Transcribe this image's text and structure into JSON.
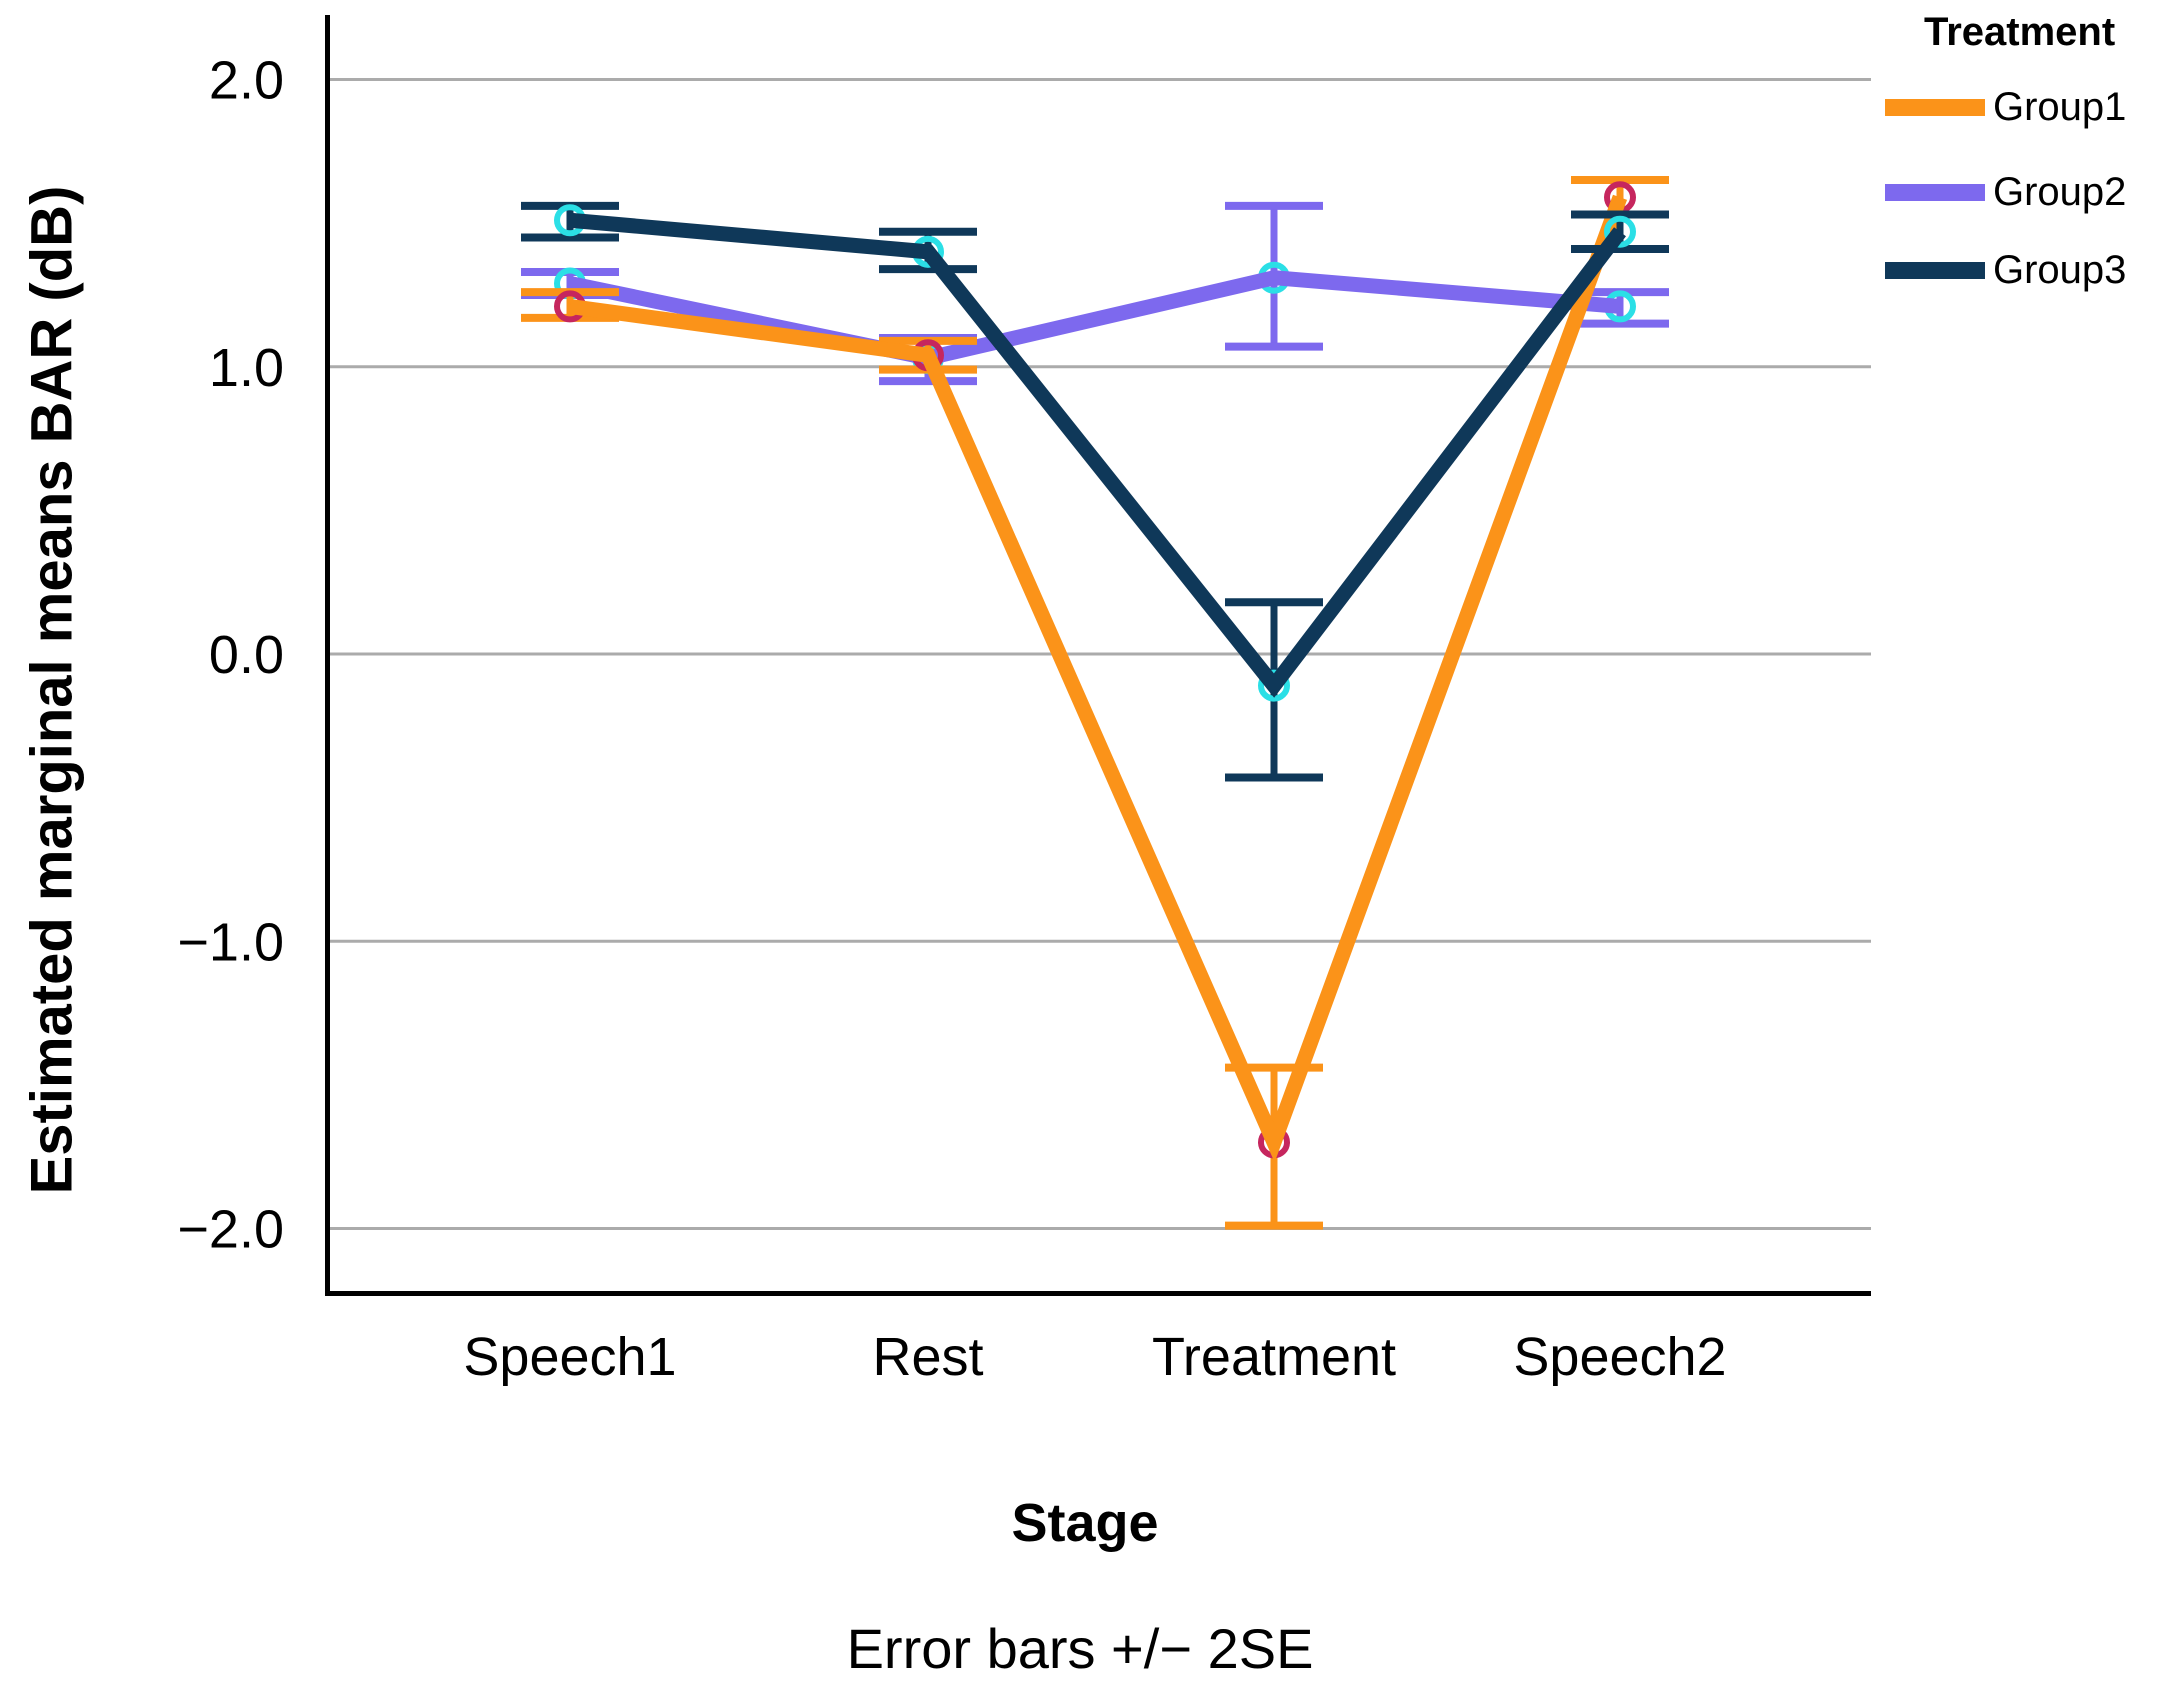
{
  "chart_data": {
    "type": "line",
    "title": "",
    "categories": [
      "Speech1",
      "Rest",
      "Treatment",
      "Speech2"
    ],
    "series": [
      {
        "name": "Group1",
        "color": "#FB9319",
        "marker_color": "#C6265E",
        "values": [
          1.21,
          1.04,
          -1.7,
          1.59
        ],
        "err_low": [
          1.17,
          0.99,
          -1.99,
          1.53
        ],
        "err_high": [
          1.26,
          1.09,
          -1.44,
          1.65
        ]
      },
      {
        "name": "Group2",
        "color": "#7D69EE",
        "marker_color": "#2BDFE6",
        "values": [
          1.29,
          1.03,
          1.31,
          1.21
        ],
        "err_low": [
          1.25,
          0.95,
          1.07,
          1.15
        ],
        "err_high": [
          1.33,
          1.1,
          1.56,
          1.26
        ]
      },
      {
        "name": "Group3",
        "color": "#0F3859",
        "marker_color": "#2BDFE6",
        "values": [
          1.51,
          1.4,
          -0.11,
          1.47
        ],
        "err_low": [
          1.45,
          1.34,
          -0.43,
          1.41
        ],
        "err_high": [
          1.56,
          1.47,
          0.18,
          1.53
        ]
      }
    ],
    "draw_order": [
      "Group2",
      "Group1",
      "Group3"
    ],
    "ylabel": "Estimated marginal means BAR (dB)",
    "xlabel": "Stage",
    "footnote": "Error bars +/− 2SE",
    "yticks": [
      2.0,
      1.0,
      0.0,
      -1.0,
      -2.0
    ],
    "ytick_labels": [
      "2.0",
      "1.0",
      "0.0",
      "−1.0",
      "−2.0"
    ],
    "ylim": [
      -2.2,
      2.2
    ],
    "grid": "horizontal",
    "gridline_color": "#ABABAB",
    "axis_color": "#000000",
    "legend_position": "top-right",
    "legend_title": "Treatment"
  },
  "legend": {
    "title": "Treatment",
    "entries": [
      {
        "label": "Group1"
      },
      {
        "label": "Group2"
      },
      {
        "label": "Group3"
      }
    ]
  }
}
